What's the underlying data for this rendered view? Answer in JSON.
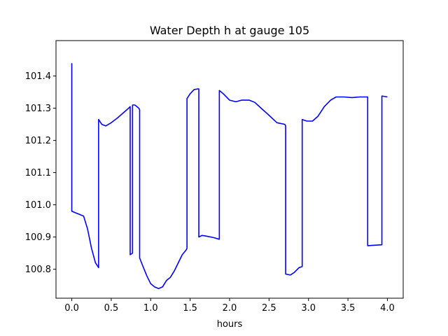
{
  "chart_data": {
    "type": "line",
    "title": "Water Depth h at gauge 105",
    "xlabel": "hours",
    "ylabel": "",
    "xlim": [
      -0.2,
      4.2
    ],
    "ylim": [
      100.71,
      101.51
    ],
    "xticks": [
      0.0,
      0.5,
      1.0,
      1.5,
      2.0,
      2.5,
      3.0,
      3.5,
      4.0
    ],
    "xtick_labels": [
      "0.0",
      "0.5",
      "1.0",
      "1.5",
      "2.0",
      "2.5",
      "3.0",
      "3.5",
      "4.0"
    ],
    "yticks": [
      100.8,
      100.9,
      101.0,
      101.1,
      101.2,
      101.3,
      101.4
    ],
    "ytick_labels": [
      "100.8",
      "100.9",
      "101.0",
      "101.1",
      "101.2",
      "101.3",
      "101.4"
    ],
    "grid": false,
    "series": [
      {
        "color": "#0000ff",
        "x": [
          0.0,
          0.0,
          0.05,
          0.1,
          0.15,
          0.2,
          0.25,
          0.3,
          0.34,
          0.34,
          0.38,
          0.43,
          0.5,
          0.58,
          0.65,
          0.72,
          0.74,
          0.74,
          0.77,
          0.77,
          0.8,
          0.85,
          0.86,
          0.86,
          0.9,
          0.95,
          1.0,
          1.05,
          1.1,
          1.15,
          1.2,
          1.25,
          1.3,
          1.35,
          1.4,
          1.45,
          1.46,
          1.46,
          1.5,
          1.55,
          1.6,
          1.61,
          1.61,
          1.65,
          1.7,
          1.8,
          1.87,
          1.87,
          1.92,
          2.0,
          2.08,
          2.15,
          2.25,
          2.32,
          2.4,
          2.5,
          2.6,
          2.7,
          2.71,
          2.71,
          2.77,
          2.82,
          2.88,
          2.92,
          2.92,
          2.98,
          3.05,
          3.12,
          3.2,
          3.28,
          3.35,
          3.45,
          3.55,
          3.65,
          3.75,
          3.75,
          3.8,
          3.93,
          3.93,
          4.0
        ],
        "y": [
          101.44,
          100.98,
          100.975,
          100.97,
          100.965,
          100.925,
          100.865,
          100.82,
          100.805,
          101.265,
          101.25,
          101.245,
          101.255,
          101.27,
          101.285,
          101.3,
          101.305,
          100.845,
          100.85,
          101.31,
          101.31,
          101.3,
          101.295,
          100.835,
          100.81,
          100.78,
          100.755,
          100.745,
          100.74,
          100.745,
          100.765,
          100.775,
          100.795,
          100.82,
          100.845,
          100.86,
          100.865,
          101.33,
          101.345,
          101.358,
          101.36,
          101.36,
          100.9,
          100.905,
          100.903,
          100.898,
          100.893,
          101.355,
          101.345,
          101.325,
          101.32,
          101.325,
          101.325,
          101.318,
          101.3,
          101.278,
          101.255,
          101.25,
          101.245,
          100.785,
          100.782,
          100.79,
          100.805,
          100.808,
          101.265,
          101.26,
          101.26,
          101.275,
          101.305,
          101.325,
          101.335,
          101.335,
          101.333,
          101.335,
          101.335,
          100.873,
          100.874,
          100.876,
          101.338,
          101.335
        ]
      }
    ]
  }
}
